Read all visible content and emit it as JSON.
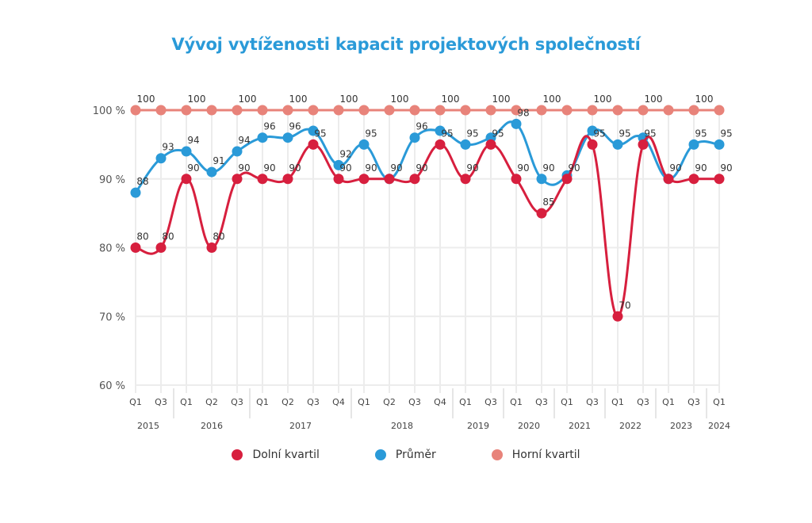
{
  "chart_data": {
    "type": "line",
    "title": "Vývoj vytíženosti kapacit projektových společností",
    "xlabel": "",
    "ylabel": "",
    "ylim": [
      60,
      100
    ],
    "yticks": [
      60,
      70,
      80,
      90,
      100
    ],
    "ytick_labels": [
      "60 %",
      "70 %",
      "80 %",
      "90 %",
      "100 %"
    ],
    "grid": true,
    "legend_position": "bottom",
    "categories": [
      "Q1",
      "Q3",
      "Q1",
      "Q2",
      "Q3",
      "Q1",
      "Q2",
      "Q3",
      "Q4",
      "Q1",
      "Q2",
      "Q3",
      "Q4",
      "Q1",
      "Q3",
      "Q1",
      "Q3",
      "Q1",
      "Q3",
      "Q1",
      "Q3",
      "Q1",
      "Q3",
      "Q1"
    ],
    "year_groups": [
      {
        "label": "2015",
        "count": 2
      },
      {
        "label": "2016",
        "count": 3
      },
      {
        "label": "2017",
        "count": 4
      },
      {
        "label": "2018",
        "count": 4
      },
      {
        "label": "2019",
        "count": 2
      },
      {
        "label": "2020",
        "count": 2
      },
      {
        "label": "2021",
        "count": 2
      },
      {
        "label": "2022",
        "count": 2
      },
      {
        "label": "2023",
        "count": 2
      },
      {
        "label": "2024",
        "count": 1
      }
    ],
    "series": [
      {
        "name": "Horní kvartil",
        "color": "#e8837a",
        "values": [
          100,
          100,
          100,
          100,
          100,
          100,
          100,
          100,
          100,
          100,
          100,
          100,
          100,
          100,
          100,
          100,
          100,
          100,
          100,
          100,
          100,
          100,
          100,
          100
        ],
        "labels": [
          "100",
          "",
          "100",
          "",
          "100",
          "",
          "100",
          "",
          "100",
          "",
          "100",
          "",
          "100",
          "",
          "100",
          "",
          "100",
          "",
          "100",
          "",
          "100",
          "",
          "100",
          ""
        ]
      },
      {
        "name": "Průměr",
        "color": "#2a9ad8",
        "values": [
          88,
          93,
          94,
          91,
          94,
          96,
          96,
          97,
          92,
          95,
          90,
          96,
          97,
          95,
          96,
          98,
          90,
          90.5,
          97,
          95,
          96,
          90,
          95,
          95
        ],
        "labels": [
          "88",
          "93",
          "94",
          "91",
          "94",
          "96",
          "96",
          "",
          "92",
          "95",
          "",
          "96",
          "",
          "95",
          "",
          "98",
          "90",
          "",
          "",
          "95",
          "",
          "",
          "95",
          "95"
        ]
      },
      {
        "name": "Dolní kvartil",
        "color": "#d71f3e",
        "values": [
          80,
          80,
          90,
          80,
          90,
          90,
          90,
          95,
          90,
          90,
          90,
          90,
          95,
          90,
          95,
          90,
          85,
          90,
          95,
          70,
          95,
          90,
          90,
          90
        ],
        "labels": [
          "80",
          "80",
          "90",
          "80",
          "90",
          "90",
          "90",
          "95",
          "90",
          "90",
          "90",
          "90",
          "95",
          "90",
          "95",
          "90",
          "85",
          "90",
          "95",
          "70",
          "95",
          "90",
          "90",
          "90"
        ]
      }
    ]
  },
  "legend": {
    "items": [
      {
        "label": "Dolní kvartil",
        "color": "#d71f3e"
      },
      {
        "label": "Průměr",
        "color": "#2a9ad8"
      },
      {
        "label": "Horní kvartil",
        "color": "#e8837a"
      }
    ]
  }
}
